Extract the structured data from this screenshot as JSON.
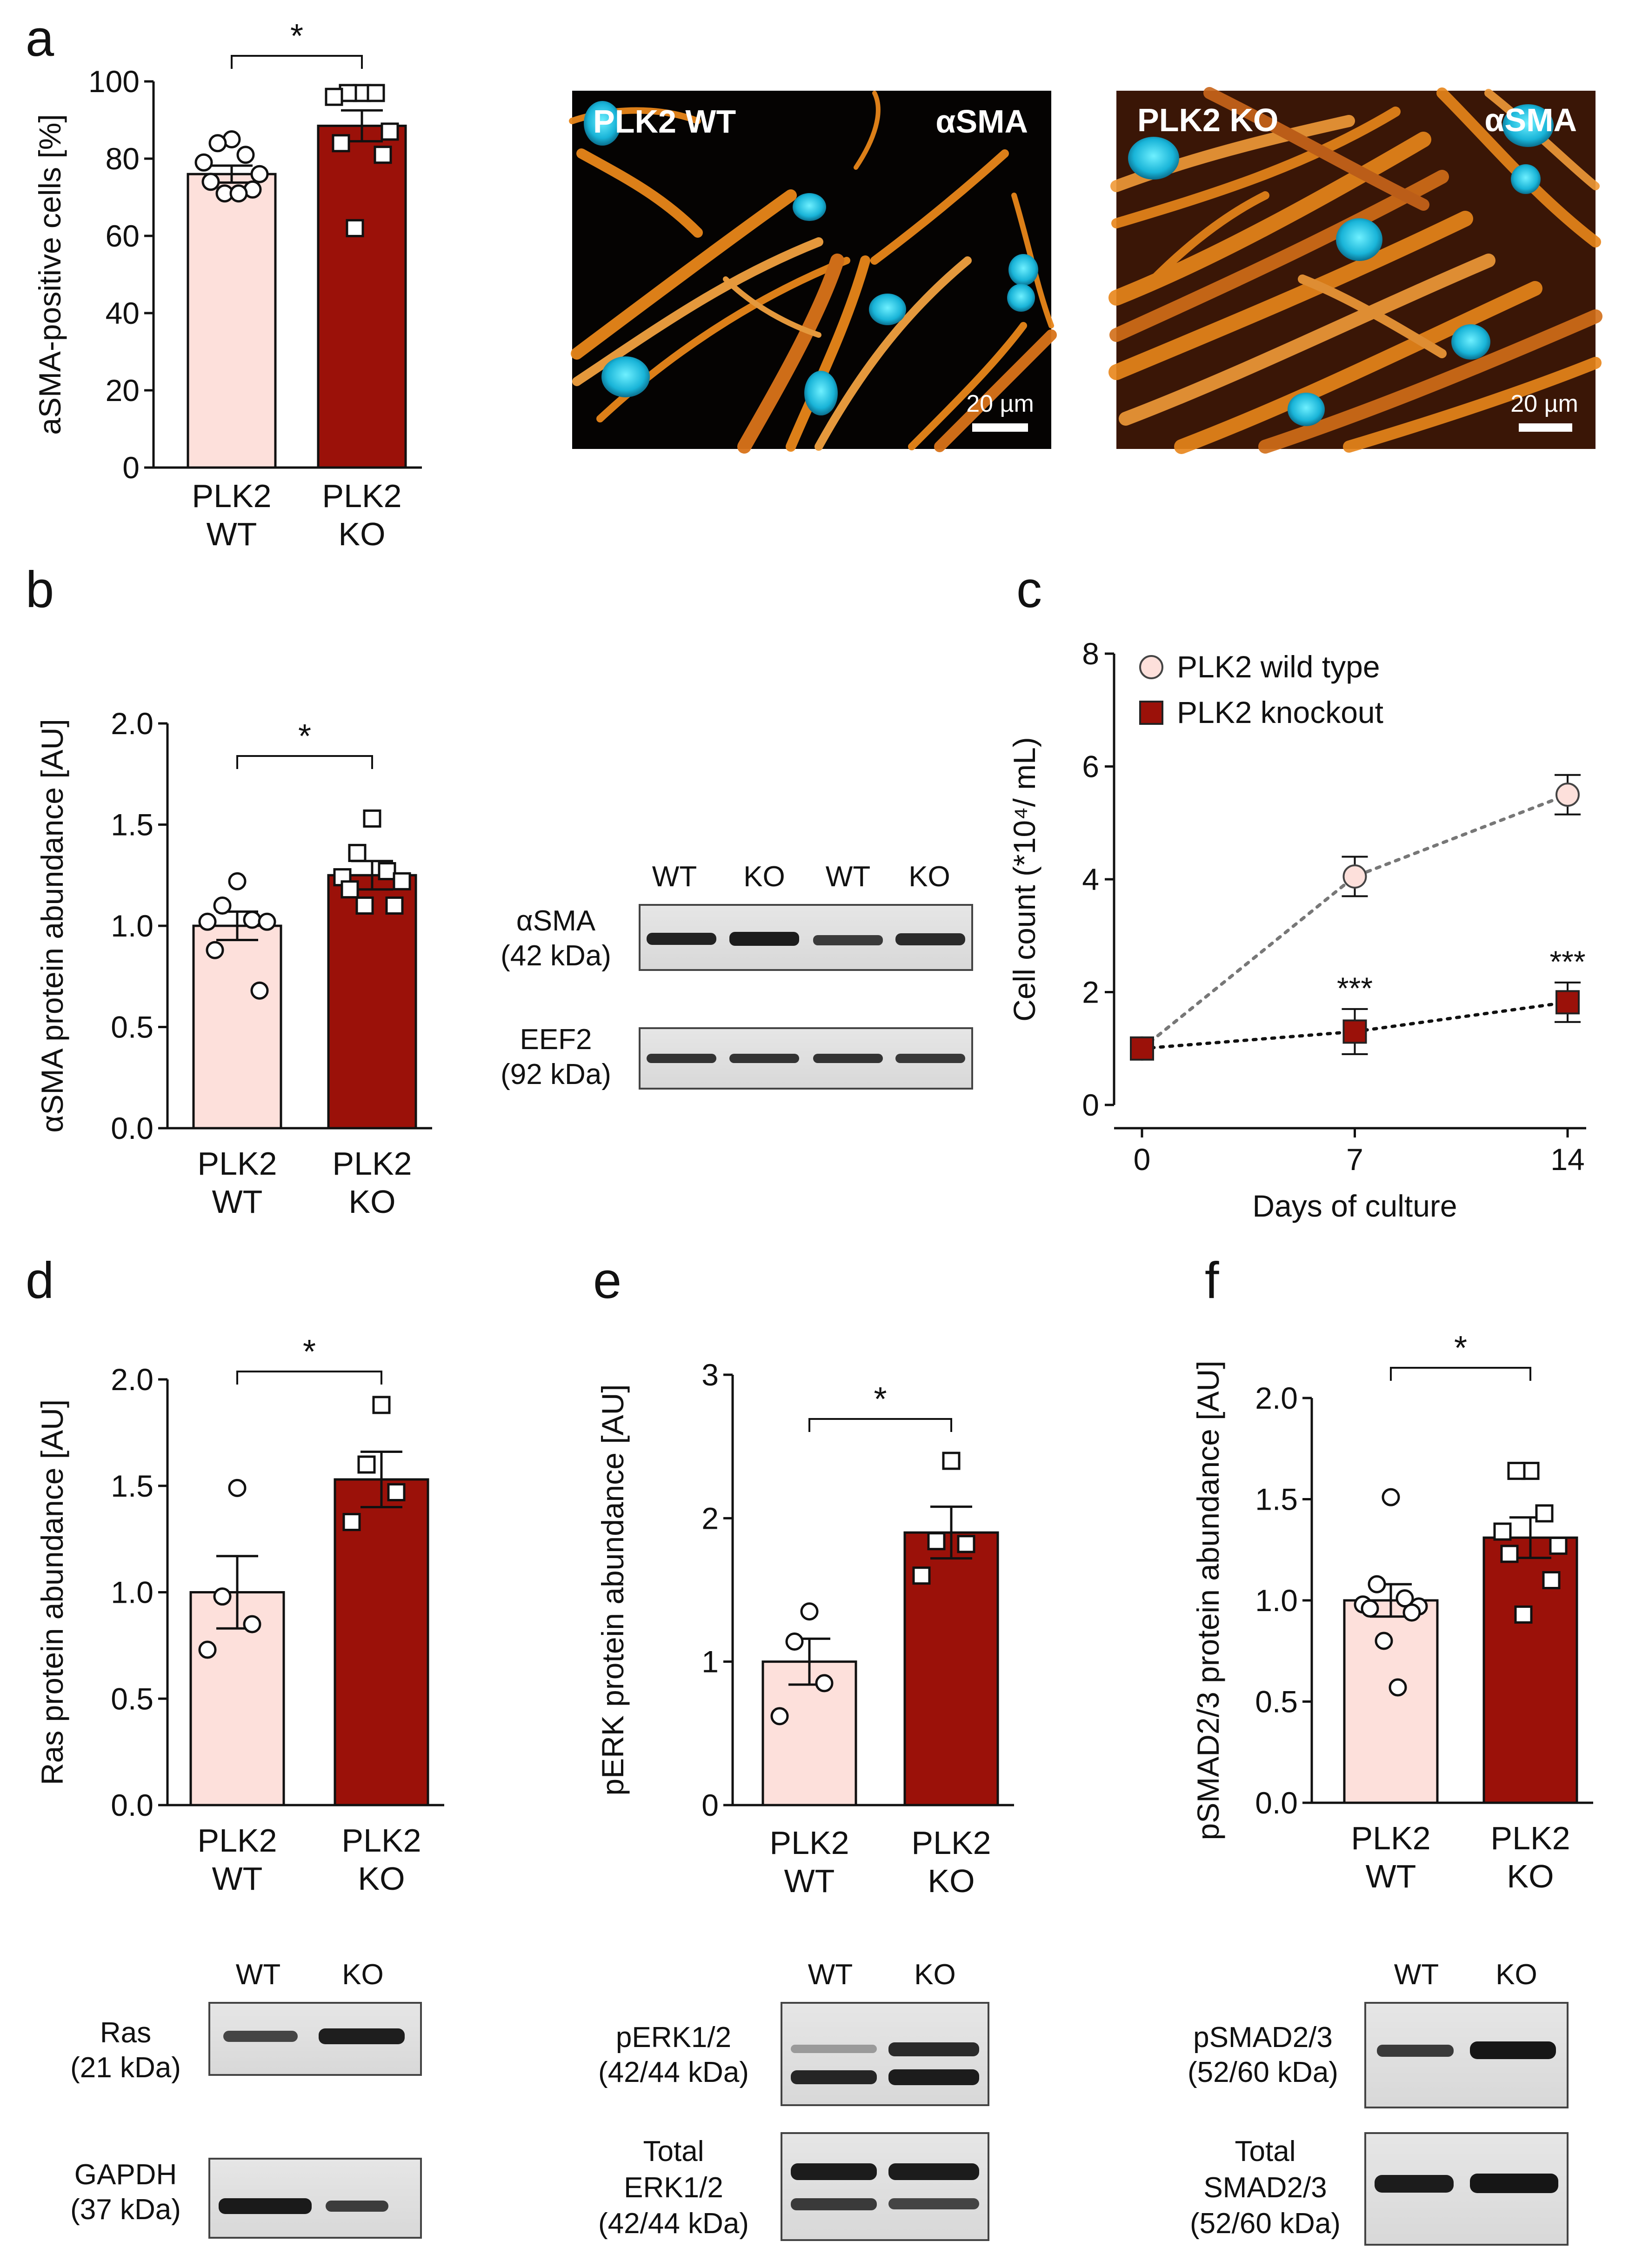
{
  "panels": {
    "a": {
      "label": "a",
      "chart_data": {
        "type": "bar",
        "ylabel": "aSMA-positive cells [%]",
        "ylim": [
          0,
          100
        ],
        "yticks": [
          "0",
          "20",
          "40",
          "60",
          "80",
          "100"
        ],
        "categories": [
          "PLK2\nWT",
          "PLK2\nKO"
        ],
        "means": [
          76,
          88.5
        ],
        "sem": [
          2.2,
          4.0
        ],
        "points": [
          [
            85,
            84,
            81,
            79,
            76,
            74,
            72,
            71,
            71
          ],
          [
            97,
            97,
            97,
            96,
            87,
            84,
            81,
            62
          ]
        ],
        "significance": "*"
      },
      "micrographs": [
        {
          "title": "PLK2 WT",
          "stain": "αSMA",
          "scale": "20 µm"
        },
        {
          "title": "PLK2 KO",
          "stain": "αSMA",
          "scale": "20 µm"
        }
      ]
    },
    "b": {
      "label": "b",
      "chart_data": {
        "type": "bar",
        "ylabel": "αSMA protein abundance [AU]",
        "ylim": [
          0,
          2
        ],
        "yticks": [
          "0.0",
          "0.5",
          "1.0",
          "1.5",
          "2.0"
        ],
        "categories": [
          "PLK2\nWT",
          "PLK2\nKO"
        ],
        "means": [
          1.0,
          1.25
        ],
        "sem": [
          0.07,
          0.07
        ],
        "points": [
          [
            1.22,
            1.1,
            1.03,
            1.02,
            1.02,
            0.88,
            0.68
          ],
          [
            1.53,
            1.36,
            1.27,
            1.24,
            1.22,
            1.18,
            1.1,
            1.1
          ]
        ],
        "significance": "*"
      },
      "blot": {
        "lanes": [
          "WT",
          "KO",
          "WT",
          "KO"
        ],
        "rows": [
          {
            "name": "αSMA",
            "kda": "(42 kDa)"
          },
          {
            "name": "EEF2",
            "kda": "(92 kDa)"
          }
        ]
      }
    },
    "c": {
      "label": "c",
      "chart_data": {
        "type": "line",
        "xlabel": "Days of culture",
        "ylabel": "Cell count (*10⁴/ mL)",
        "x": [
          0,
          7,
          14
        ],
        "xticks": [
          "0",
          "7",
          "14"
        ],
        "ylim": [
          0,
          8
        ],
        "yticks": [
          "0",
          "2",
          "4",
          "6",
          "8"
        ],
        "series": [
          {
            "name": "PLK2 wild type",
            "values": [
              1,
              4.05,
              5.5
            ],
            "sem": [
              0,
              0.35,
              0.35
            ]
          },
          {
            "name": "PLK2 knockout",
            "values": [
              1,
              1.3,
              1.82
            ],
            "sem": [
              0,
              0.4,
              0.35
            ],
            "annotations": [
              "",
              "***",
              "***"
            ]
          }
        ]
      }
    },
    "d": {
      "label": "d",
      "chart_data": {
        "type": "bar",
        "ylabel": "Ras protein abundance [AU]",
        "ylim": [
          0,
          2
        ],
        "yticks": [
          "0.0",
          "0.5",
          "1.0",
          "1.5",
          "2.0"
        ],
        "categories": [
          "PLK2\nWT",
          "PLK2\nKO"
        ],
        "means": [
          1.0,
          1.53
        ],
        "sem": [
          0.17,
          0.13
        ],
        "points": [
          [
            1.49,
            0.98,
            0.85,
            0.73
          ],
          [
            1.88,
            1.6,
            1.47,
            1.33
          ]
        ],
        "significance": "*"
      },
      "blot": {
        "lanes": [
          "WT",
          "KO"
        ],
        "rows": [
          {
            "name": "Ras",
            "kda": "(21 kDa)"
          },
          {
            "name": "GAPDH",
            "kda": "(37 kDa)"
          }
        ]
      }
    },
    "e": {
      "label": "e",
      "chart_data": {
        "type": "bar",
        "ylabel": "pERK protein abundance [AU]",
        "ylim": [
          0,
          3
        ],
        "yticks": [
          "0",
          "1",
          "2",
          "3"
        ],
        "categories": [
          "PLK2\nWT",
          "PLK2\nKO"
        ],
        "means": [
          1.0,
          1.9
        ],
        "sem": [
          0.16,
          0.18
        ],
        "points": [
          [
            1.35,
            1.14,
            0.85,
            0.62
          ],
          [
            2.4,
            1.84,
            1.82,
            1.6
          ]
        ],
        "significance": "*"
      },
      "blot": {
        "lanes": [
          "WT",
          "KO"
        ],
        "rows": [
          {
            "name": "pERK1/2",
            "kda": "(42/44 kDa)"
          },
          {
            "name": "Total\nERK1/2",
            "kda": "(42/44 kDa)"
          }
        ]
      }
    },
    "f": {
      "label": "f",
      "chart_data": {
        "type": "bar",
        "ylabel": "pSMAD2/3  protein abundance [AU]",
        "ylim": [
          0,
          2
        ],
        "yticks": [
          "0.0",
          "0.5",
          "1.0",
          "1.5",
          "2.0"
        ],
        "categories": [
          "PLK2\nWT",
          "PLK2\nKO"
        ],
        "means": [
          1.0,
          1.31
        ],
        "sem": [
          0.08,
          0.1
        ],
        "points": [
          [
            1.51,
            1.08,
            1.01,
            0.98,
            0.97,
            0.96,
            0.94,
            0.8,
            0.57
          ],
          [
            1.64,
            1.64,
            1.43,
            1.34,
            1.27,
            1.23,
            1.1,
            0.93
          ]
        ],
        "significance": "*"
      },
      "blot": {
        "lanes": [
          "WT",
          "KO"
        ],
        "rows": [
          {
            "name": "pSMAD2/3",
            "kda": "(52/60 kDa)"
          },
          {
            "name": "Total\nSMAD2/3",
            "kda": "(52/60 kDa)"
          }
        ]
      }
    }
  },
  "colors": {
    "wt_fill": "#fde0db",
    "ko_fill": "#9b1109",
    "axis": "#111111",
    "dapi": "#1cc8e8",
    "actin": "#e8861a"
  }
}
